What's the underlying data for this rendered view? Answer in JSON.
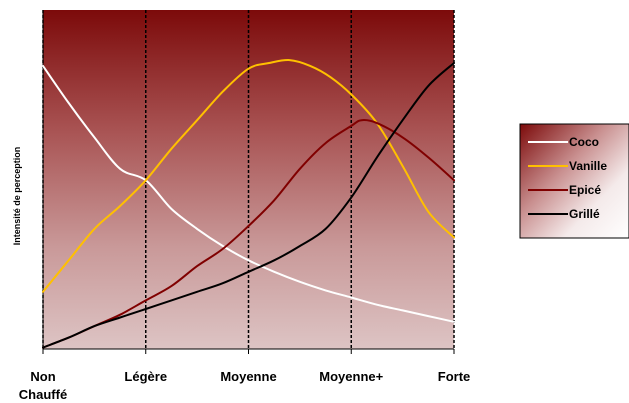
{
  "chart_data": {
    "type": "line",
    "title": "",
    "xlabel": "",
    "ylabel": "Intensité de perception",
    "categories": [
      [
        "Non",
        "Chauffé"
      ],
      [
        "Légère"
      ],
      [
        "Moyenne"
      ],
      [
        "Moyenne+"
      ],
      [
        "Forte"
      ]
    ],
    "x_range": [
      0,
      4
    ],
    "ylim": [
      0,
      10
    ],
    "grid": "vertical dashed lines at each category",
    "legend_position": "right",
    "background": "gradient dark red (top) to pale pink (bottom)",
    "series": [
      {
        "name": "Coco",
        "color": "#ffffff",
        "x": [
          0,
          0.25,
          0.5,
          0.75,
          1,
          1.25,
          1.5,
          1.75,
          2,
          2.25,
          2.5,
          2.75,
          3,
          3.25,
          3.5,
          3.75,
          4
        ],
        "values": [
          9.9,
          8.6,
          7.4,
          6.3,
          5.9,
          4.9,
          4.2,
          3.6,
          3.1,
          2.7,
          2.35,
          2.05,
          1.8,
          1.55,
          1.35,
          1.15,
          0.95
        ]
      },
      {
        "name": "Vanille",
        "color": "#ffc000",
        "x": [
          0,
          0.25,
          0.5,
          0.75,
          1,
          1.25,
          1.5,
          1.75,
          2,
          2.2,
          2.4,
          2.6,
          2.8,
          3,
          3.25,
          3.5,
          3.75,
          4
        ],
        "values": [
          2.0,
          3.1,
          4.2,
          5.0,
          5.9,
          7.0,
          8.0,
          9.0,
          9.8,
          10.0,
          10.1,
          9.9,
          9.5,
          8.9,
          7.9,
          6.4,
          4.8,
          3.9
        ]
      },
      {
        "name": "Epicé",
        "color": "#800000",
        "x": [
          0,
          0.25,
          0.5,
          0.75,
          1,
          1.25,
          1.5,
          1.75,
          2,
          2.25,
          2.5,
          2.75,
          3,
          3.1,
          3.25,
          3.5,
          3.75,
          4
        ],
        "values": [
          0.05,
          0.4,
          0.8,
          1.2,
          1.7,
          2.2,
          2.9,
          3.5,
          4.3,
          5.2,
          6.3,
          7.2,
          7.8,
          8.0,
          7.9,
          7.4,
          6.7,
          5.9
        ]
      },
      {
        "name": "Grillé",
        "color": "#000000",
        "x": [
          0,
          0.25,
          0.5,
          0.75,
          1,
          1.25,
          1.5,
          1.75,
          2,
          2.25,
          2.5,
          2.75,
          3,
          3.25,
          3.5,
          3.75,
          4
        ],
        "values": [
          0.05,
          0.4,
          0.8,
          1.1,
          1.4,
          1.7,
          2.0,
          2.3,
          2.7,
          3.1,
          3.6,
          4.2,
          5.3,
          6.7,
          8.0,
          9.2,
          10.0
        ]
      }
    ]
  }
}
